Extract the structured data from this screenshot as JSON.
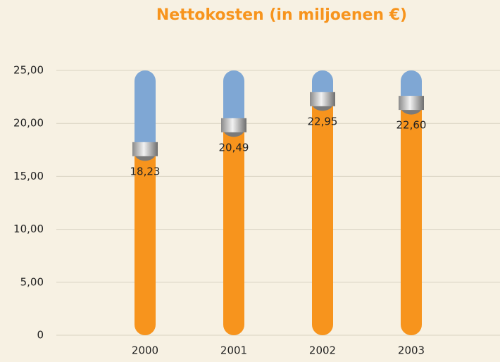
{
  "chart_data": {
    "type": "bar",
    "title": "Nettokosten (in miljoenen €)",
    "categories": [
      "2000",
      "2001",
      "2002",
      "2003"
    ],
    "values": [
      18.23,
      20.49,
      22.95,
      22.6
    ],
    "value_labels": [
      "18,23",
      "20,49",
      "22,95",
      "22,60"
    ],
    "color": "#f7941d",
    "track_color": "#7fa7d4",
    "ylim": [
      0,
      25
    ],
    "yticks": [
      0,
      {
        "value": 5,
        "label": "5,00"
      },
      {
        "value": 10,
        "label": "10,00"
      },
      {
        "value": 15,
        "label": "15,00"
      },
      {
        "value": 20,
        "label": "20,00"
      },
      {
        "value": 25,
        "label": "25,00"
      }
    ],
    "grid": true
  }
}
